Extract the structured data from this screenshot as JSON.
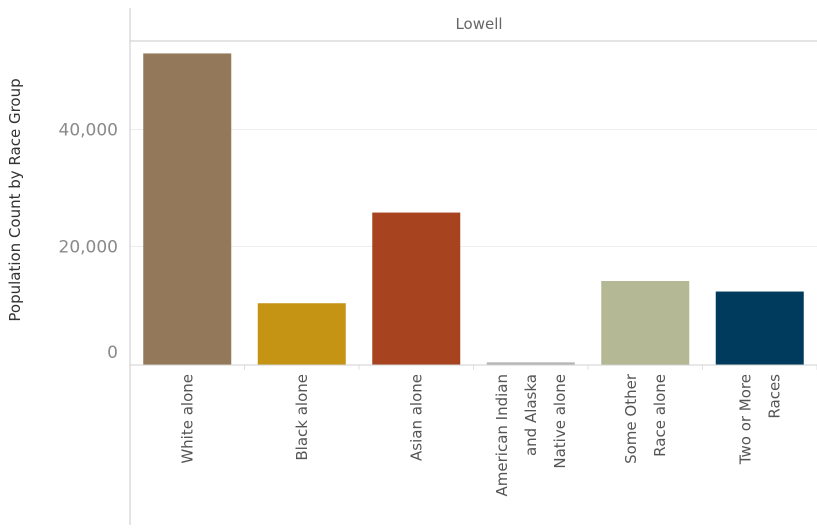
{
  "chart_data": {
    "type": "bar",
    "panel_title": "Lowell",
    "ylabel": "Population Count by Race Group",
    "xlabel": "",
    "ylim": [
      0,
      57000
    ],
    "yticks": [
      0,
      20000,
      40000
    ],
    "ytick_labels": [
      "0",
      "20,000",
      "40,000"
    ],
    "grid": true,
    "categories": [
      [
        "White alone"
      ],
      [
        "Black alone"
      ],
      [
        "Asian alone"
      ],
      [
        "American Indian",
        "and Alaska",
        "Native alone"
      ],
      [
        "Some Other",
        "Race alone"
      ],
      [
        "Two or More",
        "Races"
      ]
    ],
    "values": [
      53000,
      10300,
      25800,
      200,
      14100,
      12300
    ],
    "colors": [
      "#937859",
      "#c59414",
      "#a8431f",
      "#b6b6b6",
      "#b4b895",
      "#003a5d"
    ]
  }
}
